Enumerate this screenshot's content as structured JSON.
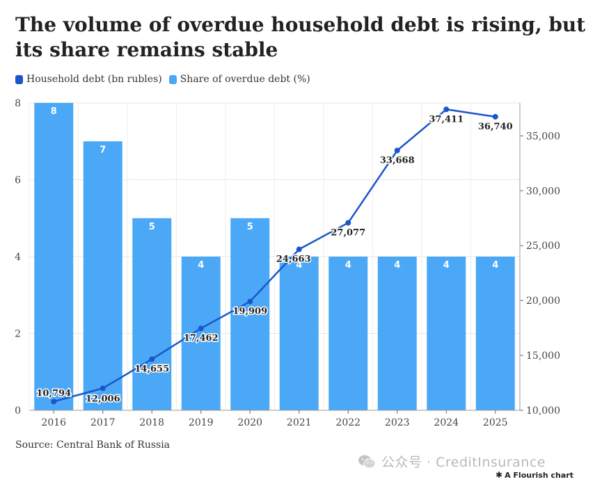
{
  "chart_data": {
    "type": "bar",
    "title": "The volume of overdue household debt is rising, but its share remains stable",
    "categories": [
      "2016",
      "2017",
      "2018",
      "2019",
      "2020",
      "2021",
      "2022",
      "2023",
      "2024",
      "2025"
    ],
    "series": [
      {
        "name": "Household debt (bn rubles)",
        "type": "line",
        "axis": "right",
        "color": "#1a56c9",
        "values": [
          10794,
          12006,
          14655,
          17462,
          19909,
          24663,
          27077,
          33668,
          37411,
          36740
        ],
        "labels": [
          "10,794",
          "12,006",
          "14,655",
          "17,462",
          "19,909",
          "24,663",
          "27,077",
          "33,668",
          "37,411",
          "36,740"
        ]
      },
      {
        "name": "Share of overdue debt (%)",
        "type": "bar",
        "axis": "left",
        "color": "#4ba8f7",
        "values": [
          8,
          7,
          5,
          4,
          5,
          4,
          4,
          4,
          4,
          4
        ],
        "labels": [
          "8",
          "7",
          "5",
          "4",
          "5",
          "4",
          "4",
          "4",
          "4",
          "4"
        ]
      }
    ],
    "y_left": {
      "range": [
        0,
        8
      ],
      "ticks": [
        0,
        2,
        4,
        6,
        8
      ],
      "tick_labels": [
        "0",
        "2",
        "4",
        "6",
        "8"
      ]
    },
    "y_right": {
      "range": [
        10000,
        38000
      ],
      "ticks": [
        10000,
        15000,
        20000,
        25000,
        30000,
        35000
      ],
      "tick_labels": [
        "10,000",
        "15,000",
        "20,000",
        "25,000",
        "30,000",
        "35,000"
      ]
    },
    "grid": true,
    "legend": "top-left"
  },
  "source": "Source: Central Bank of Russia",
  "watermark": "公众号 · CreditInsurance",
  "credit": "A Flourish chart"
}
